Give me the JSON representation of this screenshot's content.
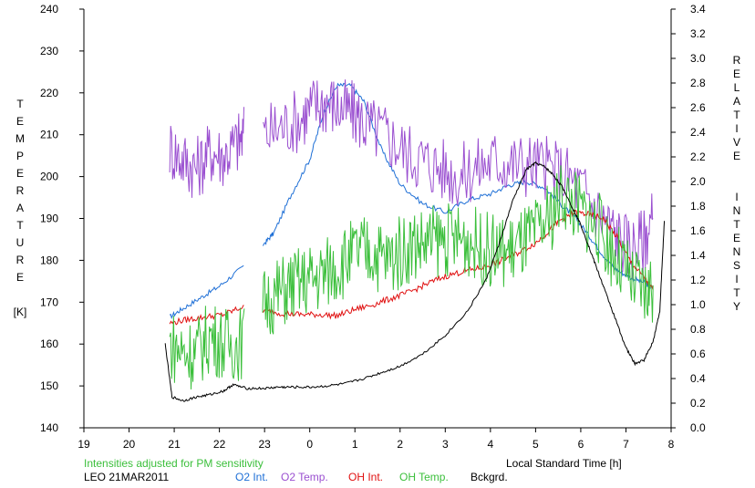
{
  "chart_data": {
    "type": "line",
    "xlabel": "Local Standard Time [h]",
    "ylabel_left": [
      "T",
      "E",
      "M",
      "P",
      "E",
      "R",
      "A",
      "T",
      "U",
      "R",
      "E",
      "",
      "[K]"
    ],
    "ylabel_right": [
      "R",
      "E",
      "L",
      "A",
      "T",
      "I",
      "V",
      "E",
      "",
      "",
      "I",
      "N",
      "T",
      "E",
      "N",
      "S",
      "I",
      "T",
      "Y"
    ],
    "x_ticks": [
      "19",
      "20",
      "21",
      "22",
      "23",
      "0",
      "1",
      "2",
      "3",
      "4",
      "5",
      "6",
      "7",
      "8"
    ],
    "xlim": [
      19,
      32
    ],
    "y_left_ticks": [
      "140",
      "150",
      "160",
      "170",
      "180",
      "190",
      "200",
      "210",
      "220",
      "230",
      "240"
    ],
    "ylim_left": [
      140,
      240
    ],
    "y_right_ticks": [
      "0.0",
      "0.2",
      "0.4",
      "0.6",
      "0.8",
      "1.0",
      "1.2",
      "1.4",
      "1.6",
      "1.8",
      "2.0",
      "2.2",
      "2.4",
      "2.6",
      "2.8",
      "3.0",
      "3.2",
      "3.4"
    ],
    "ylim_right": [
      0.0,
      3.4
    ],
    "annotation": "Intensities adjusted for PM sensitivity",
    "site_label": "LEO 21MAR2011",
    "series": [
      {
        "name": "O2 Int.",
        "color": "#1e6fd6",
        "axis": "right",
        "x": [
          20.9,
          21.2,
          21.6,
          22.0,
          22.5,
          23.0,
          23.2,
          23.6,
          24.0,
          24.3,
          24.6,
          24.9,
          25.2,
          25.6,
          26.0,
          26.5,
          27.0,
          27.5,
          28.0,
          28.4,
          28.8,
          29.2,
          29.6,
          29.9,
          30.2,
          30.5,
          30.8,
          31.1,
          31.4,
          31.6
        ],
        "y": [
          0.9,
          0.97,
          1.06,
          1.15,
          1.3,
          1.5,
          1.58,
          1.9,
          2.18,
          2.55,
          2.78,
          2.78,
          2.65,
          2.25,
          1.98,
          1.82,
          1.75,
          1.85,
          1.9,
          1.97,
          2.0,
          1.95,
          1.8,
          1.7,
          1.55,
          1.4,
          1.28,
          1.22,
          1.18,
          1.13
        ]
      },
      {
        "name": "O2 Temp.",
        "color": "#9a4fd0",
        "axis": "left",
        "x": [
          20.9,
          21.2,
          21.5,
          21.8,
          22.1,
          22.4,
          22.6,
          23.0,
          23.4,
          23.8,
          24.1,
          24.4,
          24.7,
          25.0,
          25.3,
          25.7,
          26.1,
          26.5,
          26.9,
          27.3,
          27.7,
          28.1,
          28.5,
          28.9,
          29.3,
          29.7,
          30.1,
          30.5,
          30.8,
          31.1,
          31.4,
          31.6
        ],
        "y": [
          207,
          204,
          202,
          206,
          205,
          208,
          210,
          210,
          212,
          214,
          217,
          218,
          216,
          215,
          212,
          210,
          206,
          204,
          202,
          200,
          202,
          204,
          203,
          203,
          202,
          200,
          196,
          190,
          186,
          183,
          185,
          190
        ]
      },
      {
        "name": "OH Int.",
        "color": "#e01010",
        "axis": "right",
        "x": [
          20.9,
          21.3,
          21.7,
          22.1,
          22.5,
          23.0,
          23.4,
          23.8,
          24.2,
          24.6,
          25.0,
          25.4,
          25.8,
          26.2,
          26.6,
          27.0,
          27.4,
          27.8,
          28.2,
          28.6,
          29.0,
          29.3,
          29.6,
          29.9,
          30.2,
          30.5,
          30.8,
          31.1,
          31.4,
          31.6
        ],
        "y": [
          0.85,
          0.88,
          0.9,
          0.92,
          0.98,
          0.95,
          0.93,
          0.92,
          0.92,
          0.91,
          0.96,
          1.0,
          1.05,
          1.1,
          1.17,
          1.23,
          1.27,
          1.3,
          1.35,
          1.42,
          1.5,
          1.6,
          1.7,
          1.75,
          1.73,
          1.7,
          1.55,
          1.35,
          1.22,
          1.12
        ]
      },
      {
        "name": "OH Temp.",
        "color": "#3bbf3b",
        "axis": "left",
        "x": [
          20.9,
          21.2,
          21.5,
          21.8,
          22.1,
          22.4,
          22.7,
          23.0,
          23.3,
          23.6,
          23.9,
          24.2,
          24.5,
          24.8,
          25.1,
          25.4,
          25.7,
          26.0,
          26.3,
          26.6,
          26.9,
          27.2,
          27.5,
          27.8,
          28.1,
          28.4,
          28.7,
          29.0,
          29.3,
          29.6,
          29.9,
          30.2,
          30.5,
          30.8,
          31.1,
          31.4,
          31.6
        ],
        "y": [
          160,
          158,
          158,
          162,
          160,
          160,
          162,
          170,
          172,
          174,
          175,
          176,
          178,
          180,
          182,
          182,
          180,
          182,
          184,
          184,
          185,
          185,
          185,
          183,
          182,
          182,
          184,
          186,
          190,
          196,
          193,
          190,
          186,
          180,
          175,
          172,
          174
        ]
      },
      {
        "name": "Bckgrd.",
        "color": "#000000",
        "axis": "right",
        "x": [
          20.8,
          20.95,
          21.2,
          21.5,
          21.8,
          22.1,
          22.3,
          22.6,
          23.0,
          23.3,
          23.6,
          24.0,
          24.4,
          24.8,
          25.2,
          25.6,
          26.0,
          26.5,
          27.0,
          27.5,
          27.9,
          28.2,
          28.5,
          28.8,
          29.0,
          29.2,
          29.4,
          29.6,
          29.8,
          30.0,
          30.2,
          30.4,
          30.6,
          30.8,
          31.0,
          31.2,
          31.4,
          31.6,
          31.75,
          31.85
        ],
        "y": [
          0.68,
          0.25,
          0.22,
          0.25,
          0.27,
          0.3,
          0.35,
          0.32,
          0.32,
          0.33,
          0.33,
          0.33,
          0.34,
          0.36,
          0.4,
          0.45,
          0.5,
          0.6,
          0.75,
          0.95,
          1.2,
          1.5,
          1.85,
          2.1,
          2.15,
          2.12,
          2.05,
          1.95,
          1.8,
          1.65,
          1.45,
          1.25,
          1.05,
          0.85,
          0.65,
          0.52,
          0.55,
          0.7,
          0.95,
          1.68
        ]
      }
    ]
  }
}
